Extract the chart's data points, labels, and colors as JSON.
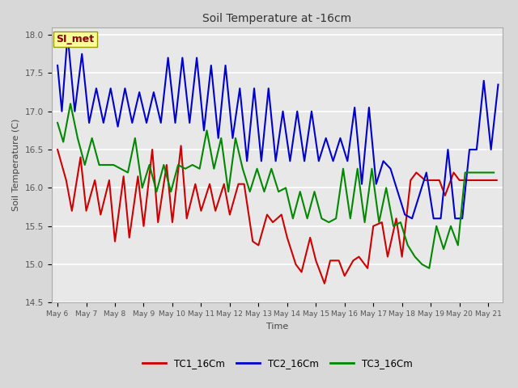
{
  "title": "Soil Temperature at -16cm",
  "xlabel": "Time",
  "ylabel": "Soil Temperature (C)",
  "ylim": [
    14.5,
    18.1
  ],
  "bg_color": "#d8d8d8",
  "plot_bg_color": "#e8e8e8",
  "grid_color": "#ffffff",
  "annotation_text": "SI_met",
  "annotation_bg": "#ffff99",
  "annotation_border": "#999900",
  "annotation_text_color": "#880000",
  "tick_labels": [
    "May 6",
    "May 7",
    "May 8",
    "May 9",
    "May 10",
    "May 11",
    "May 12",
    "May 13",
    "May 14",
    "May 15",
    "May 16",
    "May 17",
    "May 18",
    "May 19",
    "May 20",
    "May 21"
  ],
  "legend_labels": [
    "TC1_16Cm",
    "TC2_16Cm",
    "TC3_16Cm"
  ],
  "legend_colors": [
    "#cc0000",
    "#0000cc",
    "#008800"
  ],
  "line_width": 1.5,
  "TC1_x": [
    0,
    0.3,
    0.5,
    0.8,
    1.0,
    1.3,
    1.5,
    1.8,
    2.0,
    2.3,
    2.5,
    2.8,
    3.0,
    3.3,
    3.5,
    3.8,
    4.0,
    4.3,
    4.5,
    4.8,
    5.0,
    5.3,
    5.5,
    5.8,
    6.0,
    6.3,
    6.5,
    6.8,
    7.0,
    7.3,
    7.5,
    7.8,
    8.0,
    8.3,
    8.5,
    8.8,
    9.0,
    9.3,
    9.5,
    9.8,
    10.0,
    10.3,
    10.5,
    10.8,
    11.0,
    11.3,
    11.5,
    11.8,
    12.0,
    12.3,
    12.5,
    12.8,
    13.0,
    13.3,
    13.5,
    13.8,
    14.0,
    14.3,
    14.5,
    14.8,
    15.0,
    15.3
  ],
  "TC1_y": [
    16.5,
    16.1,
    15.7,
    16.4,
    15.7,
    16.1,
    15.65,
    16.1,
    15.3,
    16.15,
    15.35,
    16.15,
    15.5,
    16.5,
    15.55,
    16.3,
    15.55,
    16.55,
    15.6,
    16.05,
    15.7,
    16.05,
    15.7,
    16.05,
    15.65,
    16.05,
    16.05,
    15.3,
    15.25,
    15.65,
    15.55,
    15.65,
    15.35,
    15.0,
    14.9,
    15.35,
    15.05,
    14.75,
    15.05,
    15.05,
    14.85,
    15.05,
    15.1,
    14.95,
    15.5,
    15.55,
    15.1,
    15.6,
    15.1,
    16.1,
    16.2,
    16.1,
    16.1,
    16.1,
    15.9,
    16.2,
    16.1,
    16.1,
    16.1,
    16.1,
    16.1,
    16.1
  ],
  "TC2_x": [
    0,
    0.15,
    0.35,
    0.6,
    0.85,
    1.1,
    1.35,
    1.6,
    1.85,
    2.1,
    2.35,
    2.6,
    2.85,
    3.1,
    3.35,
    3.6,
    3.85,
    4.1,
    4.35,
    4.6,
    4.85,
    5.1,
    5.35,
    5.6,
    5.85,
    6.1,
    6.35,
    6.6,
    6.85,
    7.1,
    7.35,
    7.6,
    7.85,
    8.1,
    8.35,
    8.6,
    8.85,
    9.1,
    9.35,
    9.6,
    9.85,
    10.1,
    10.35,
    10.6,
    10.85,
    11.1,
    11.35,
    11.6,
    11.85,
    12.1,
    12.35,
    12.6,
    12.85,
    13.1,
    13.35,
    13.6,
    13.85,
    14.1,
    14.35,
    14.6,
    14.85,
    15.1,
    15.35
  ],
  "TC2_y": [
    17.6,
    17.0,
    18.0,
    17.0,
    17.75,
    16.85,
    17.3,
    16.85,
    17.3,
    16.8,
    17.3,
    16.85,
    17.25,
    16.85,
    17.25,
    16.85,
    17.7,
    16.85,
    17.7,
    16.85,
    17.7,
    16.75,
    17.6,
    16.65,
    17.6,
    16.65,
    17.3,
    16.35,
    17.3,
    16.35,
    17.3,
    16.35,
    17.0,
    16.35,
    17.0,
    16.35,
    17.0,
    16.35,
    16.65,
    16.35,
    16.65,
    16.35,
    17.05,
    16.05,
    17.05,
    16.05,
    16.35,
    16.25,
    15.95,
    15.65,
    15.6,
    15.9,
    16.2,
    15.6,
    15.6,
    16.5,
    15.6,
    15.6,
    16.5,
    16.5,
    17.4,
    16.5,
    17.35
  ],
  "TC3_x": [
    0,
    0.2,
    0.45,
    0.7,
    0.95,
    1.2,
    1.45,
    1.7,
    1.95,
    2.2,
    2.45,
    2.7,
    2.95,
    3.2,
    3.45,
    3.7,
    3.95,
    4.2,
    4.45,
    4.7,
    4.95,
    5.2,
    5.45,
    5.7,
    5.95,
    6.2,
    6.45,
    6.7,
    6.95,
    7.2,
    7.45,
    7.7,
    7.95,
    8.2,
    8.45,
    8.7,
    8.95,
    9.2,
    9.45,
    9.7,
    9.95,
    10.2,
    10.45,
    10.7,
    10.95,
    11.2,
    11.45,
    11.7,
    11.95,
    12.2,
    12.45,
    12.7,
    12.95,
    13.2,
    13.45,
    13.7,
    13.95,
    14.2,
    14.45,
    14.7,
    14.95,
    15.2
  ],
  "TC3_y": [
    16.85,
    16.6,
    17.1,
    16.65,
    16.3,
    16.65,
    16.3,
    16.3,
    16.3,
    16.25,
    16.2,
    16.65,
    16.0,
    16.3,
    15.95,
    16.3,
    15.95,
    16.3,
    16.25,
    16.3,
    16.25,
    16.75,
    16.25,
    16.65,
    15.95,
    16.65,
    16.25,
    15.95,
    16.25,
    15.95,
    16.25,
    15.95,
    16.0,
    15.6,
    15.95,
    15.6,
    15.95,
    15.6,
    15.55,
    15.6,
    16.25,
    15.6,
    16.25,
    15.55,
    16.25,
    15.55,
    16.0,
    15.5,
    15.55,
    15.25,
    15.1,
    15.0,
    14.95,
    15.5,
    15.2,
    15.5,
    15.25,
    16.2,
    16.2,
    16.2,
    16.2,
    16.2
  ]
}
